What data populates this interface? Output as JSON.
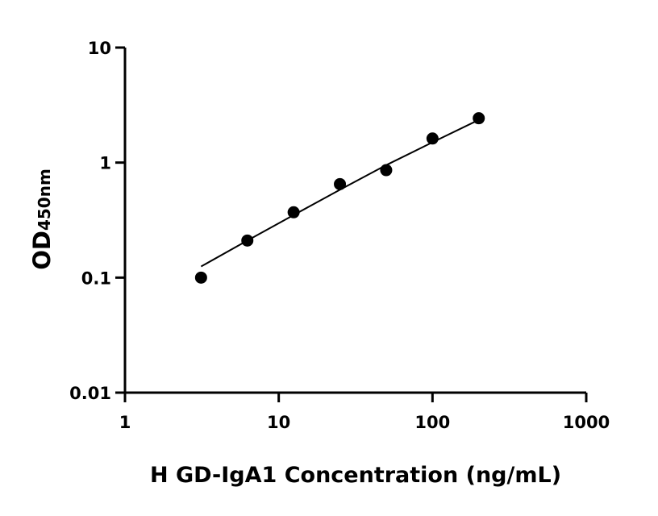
{
  "chart_data": {
    "type": "scatter",
    "title": "",
    "xlabel": "H GD-IgA1 Concentration (ng/mL)",
    "ylabel": "OD",
    "ylabel_subscript": "450nm",
    "x_scale": "log",
    "y_scale": "log",
    "xlim": [
      1,
      1000
    ],
    "ylim": [
      0.01,
      10
    ],
    "x_ticks": [
      1,
      10,
      100,
      1000
    ],
    "x_tick_labels": [
      "1",
      "10",
      "100",
      "1000"
    ],
    "y_ticks": [
      0.01,
      0.1,
      1,
      10
    ],
    "y_tick_labels": [
      "0.01",
      "0.1",
      "1",
      "10"
    ],
    "grid": false,
    "points": {
      "x": [
        3.125,
        6.25,
        12.5,
        25,
        50,
        100,
        200
      ],
      "y": [
        0.1,
        0.21,
        0.37,
        0.65,
        0.86,
        1.62,
        2.43
      ]
    },
    "fit_curve": {
      "x": [
        3.125,
        6.25,
        12.5,
        25,
        50,
        100,
        200
      ],
      "y": [
        0.125,
        0.21,
        0.35,
        0.58,
        0.95,
        1.5,
        2.35
      ]
    },
    "marker_color": "#000000",
    "line_color": "#000000"
  }
}
